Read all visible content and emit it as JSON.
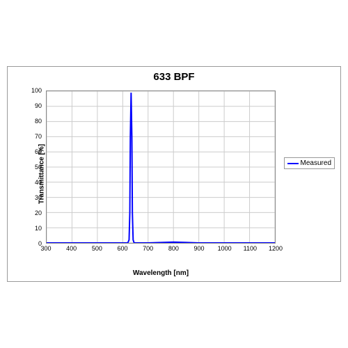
{
  "chart": {
    "type": "line",
    "title": "633 BPF",
    "title_fontsize": 15,
    "title_weight": "bold",
    "xlabel": "Wavelength [nm]",
    "ylabel": "Transmittance [%]",
    "label_fontsize": 10,
    "label_weight": "bold",
    "tick_fontsize": 9,
    "xlim": [
      300,
      1200
    ],
    "ylim": [
      0,
      100
    ],
    "xticks": [
      300,
      400,
      500,
      600,
      700,
      800,
      900,
      1000,
      1100,
      1200
    ],
    "yticks": [
      0,
      10,
      20,
      30,
      40,
      50,
      60,
      70,
      80,
      90,
      100
    ],
    "grid_on": true,
    "grid_color": "#cccccc",
    "border_color": "#888888",
    "background_color": "#ffffff",
    "outer_border_color": "#999999",
    "series": [
      {
        "name": "Measured",
        "color": "#0000ff",
        "line_width": 2,
        "data": [
          [
            300,
            0
          ],
          [
            400,
            0
          ],
          [
            500,
            0
          ],
          [
            600,
            0
          ],
          [
            620,
            0
          ],
          [
            625,
            2
          ],
          [
            628,
            20
          ],
          [
            630,
            70
          ],
          [
            633,
            99
          ],
          [
            636,
            70
          ],
          [
            638,
            20
          ],
          [
            641,
            2
          ],
          [
            645,
            0
          ],
          [
            700,
            0
          ],
          [
            800,
            0.5
          ],
          [
            850,
            0.3
          ],
          [
            900,
            0
          ],
          [
            1000,
            0
          ],
          [
            1100,
            0
          ],
          [
            1200,
            0
          ]
        ]
      }
    ],
    "legend": {
      "position": "right",
      "border_color": "#999999",
      "fontsize": 10
    }
  }
}
